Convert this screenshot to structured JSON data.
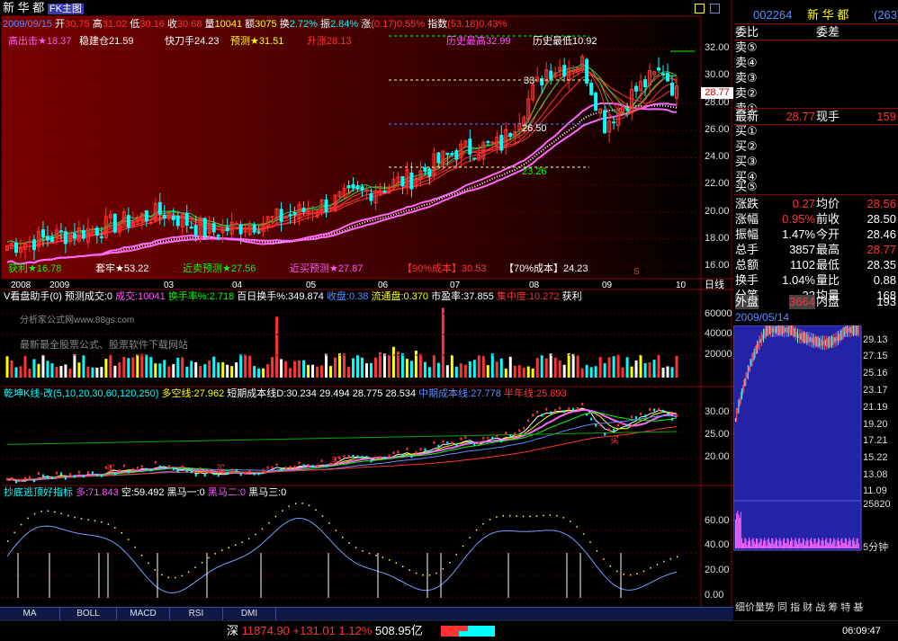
{
  "header": {
    "stock_name": "新 华 都",
    "chart_mode": "FK主图",
    "date": "2009/09/15",
    "open_label": "开",
    "open": "30.75",
    "high_label": "高",
    "high": "31.02",
    "low_label": "低",
    "low": "30.16",
    "close_label": "收",
    "close": "30.68",
    "volume_label": "量",
    "volume": "10041",
    "amount_label": "额",
    "amount": "3075",
    "turnover_label": "换",
    "turnover": "2.72%",
    "amplitude_label": "振",
    "amplitude": "2.84%",
    "change_label": "涨",
    "change": "(0.17)0.55%",
    "index_label": "指数",
    "index": "(53.18)0.43%"
  },
  "main_chart": {
    "ind_high_sell": "高出击★18.37",
    "ind_steady": "稳建仓21.59",
    "ind_quick": "快刀手24.23",
    "ind_predict": "预测★31.51",
    "ind_rise": "升涨28.13",
    "hist_high": "历史最高32.99",
    "hist_low": "历史最低10.92",
    "ind_profit": "获利★16.78",
    "ind_trap": "套牢★53.22",
    "ind_near_sell": "近卖预测★27.56",
    "ind_near_buy": "近买预测★27.87",
    "cost90": "【90%成本】30.53",
    "cost70": "【70%成本】24.23",
    "level_upper": "33",
    "level_mid": "26.50",
    "level_low": "23.26",
    "price_marker": "28.77",
    "price_axis": [
      "32.00",
      "30.00",
      "28.00",
      "26.00",
      "24.00",
      "22.00",
      "20.00",
      "18.00",
      "16.00"
    ],
    "period_label": "日线",
    "date_axis": [
      "2008",
      "2009",
      "03",
      "04",
      "05",
      "06",
      "07",
      "08",
      "09",
      "10"
    ],
    "sell_marks": [
      "S",
      "S"
    ]
  },
  "volume_panel": {
    "title": "V看盘助手(0)",
    "pred_vol": "预测成交:0",
    "vol": "成交:10041",
    "turnover_rate": "换手率%:2.718",
    "day_turnover": "百日换手%:349.874",
    "shou_pan": "收盘:0.38",
    "circ": "流通盘:0.370",
    "pe": "市盈率:37.855",
    "concentration": "集中度:10.272",
    "profit": "获利",
    "watermark1": "分析家公式网www.88gs.com",
    "watermark2": "最新最全股票公式、股票软件下载网站",
    "vol_axis": [
      "60000",
      "40000",
      "20000"
    ]
  },
  "k_panel": {
    "title": "乾坤K线-改(5,10,20,30,60,120,250)",
    "multi_empty": "多空线:27.962",
    "short_cost": "短期成本线D:30.234",
    "v2": "29.494",
    "v3": "28.775",
    "v4": "28.534",
    "mid_cost": "中期成本线:27.778",
    "half_year": "半年线:25.893",
    "axis": [
      "30.00",
      "25.00",
      "20.00"
    ],
    "buy_mark": "买"
  },
  "bottom_panel": {
    "title": "抄底逃顶好指标",
    "bull": "多:71.843",
    "bear": "空:59.492",
    "black1": "黑马一:0",
    "black2": "黑马二:0",
    "black3": "黑马三:0",
    "axis": [
      "60.00",
      "40.00",
      "20.00",
      "0.00"
    ]
  },
  "tabs": [
    "MA",
    "BOLL",
    "MACD",
    "RSI",
    "DMI"
  ],
  "right_panel": {
    "code": "002264",
    "name": "新 华 都",
    "rank": "(263)",
    "weibi_label": "委比",
    "weicha_label": "委差",
    "sell_levels": [
      "卖⑤",
      "卖④",
      "卖③",
      "卖②",
      "卖①"
    ],
    "latest_label": "最新",
    "latest": "28.77",
    "now_hand_label": "现手",
    "now_hand": "159",
    "buy_levels": [
      "买①",
      "买②",
      "买③",
      "买④",
      "买⑤"
    ],
    "rows": [
      {
        "k": "涨跌",
        "v": "0.27",
        "k2": "均价",
        "v2": "28.56"
      },
      {
        "k": "涨幅",
        "v": "0.95%",
        "k2": "前收",
        "v2": "28.50"
      },
      {
        "k": "振幅",
        "v": "1.47%",
        "k2": "今开",
        "v2": "28.46"
      },
      {
        "k": "总手",
        "v": "3857",
        "k2": "最高",
        "v2": "28.77"
      },
      {
        "k": "总额",
        "v": "1102",
        "k2": "最低",
        "v2": "28.35"
      },
      {
        "k": "换手",
        "v": "1.04%",
        "k2": "量比",
        "v2": "0.88"
      },
      {
        "k": "分笔",
        "v": "23",
        "k2": "均量",
        "v2": "168"
      }
    ],
    "outer_label": "外盘",
    "outer": "3664",
    "inner_label": "内盘",
    "inner": "193",
    "mini_date": "2009/05/14",
    "mini_axis": [
      "29.13",
      "27.15",
      "25.16",
      "23.17",
      "21.19",
      "19.20",
      "17.21",
      "15.22",
      "13.08",
      "11.09"
    ],
    "mini_vol_max": "25820",
    "mini_period": "5分钟",
    "bottom_tabs": "细价量势 同 指 财 战 筹 特 基"
  },
  "statusbar": {
    "market": "深",
    "index_value": "11874.90",
    "index_change": "+131.01",
    "index_pct": "1.12%",
    "amount": "508.95亿",
    "time": "06:09:47"
  },
  "colors": {
    "up": "#ff3333",
    "down": "#00ffff",
    "grid_red": "#8b0000",
    "panel_border": "#8b0000",
    "right_panel_blue": "#1a1aa0"
  }
}
